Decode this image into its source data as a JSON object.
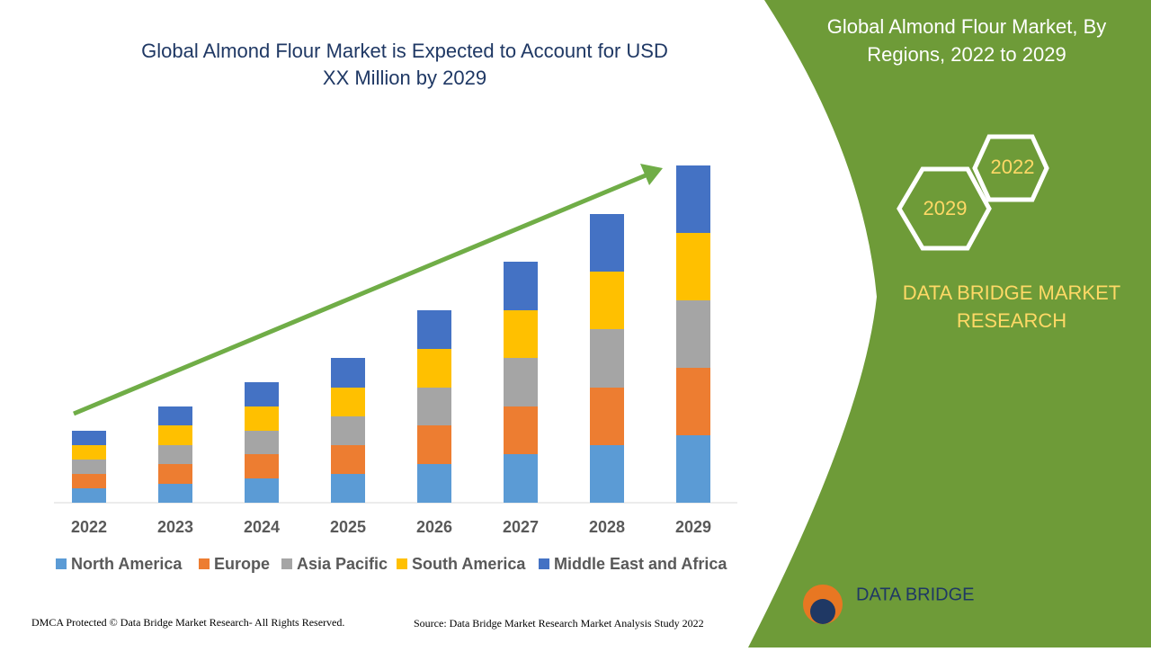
{
  "chart_data": {
    "type": "stacked_bar",
    "title": "Global Almond Flour Market is Expected to Account for USD XX Million by 2029",
    "categories": [
      "2022",
      "2023",
      "2024",
      "2025",
      "2026",
      "2027",
      "2028",
      "2029"
    ],
    "series": [
      {
        "name": "North America",
        "color": "#5b9bd5",
        "values": [
          16,
          21,
          27,
          32,
          43,
          54,
          64,
          75
        ]
      },
      {
        "name": "Europe",
        "color": "#ed7d31",
        "values": [
          16,
          22,
          27,
          32,
          43,
          53,
          64,
          75
        ]
      },
      {
        "name": "Asia Pacific",
        "color": "#a5a5a5",
        "values": [
          16,
          21,
          26,
          32,
          42,
          54,
          65,
          75
        ]
      },
      {
        "name": "South America",
        "color": "#ffc000",
        "values": [
          16,
          22,
          27,
          32,
          43,
          53,
          64,
          75
        ]
      },
      {
        "name": "Middle East and Africa",
        "color": "#4472c4",
        "values": [
          16,
          21,
          27,
          33,
          43,
          54,
          64,
          75
        ]
      }
    ],
    "legend": "bottom"
  },
  "panel": {
    "title": "Global Almond Flour Market, By Regions, 2022 to 2029",
    "hex_start": "2022",
    "hex_end": "2029",
    "brand": "DATA BRIDGE MARKET RESEARCH",
    "logo": "DATA BRIDGE"
  },
  "footer": {
    "copyright": "DMCA Protected © Data Bridge Market Research- All Rights Reserved.",
    "source": "Source: Data Bridge Market Research Market Analysis Study 2022"
  }
}
